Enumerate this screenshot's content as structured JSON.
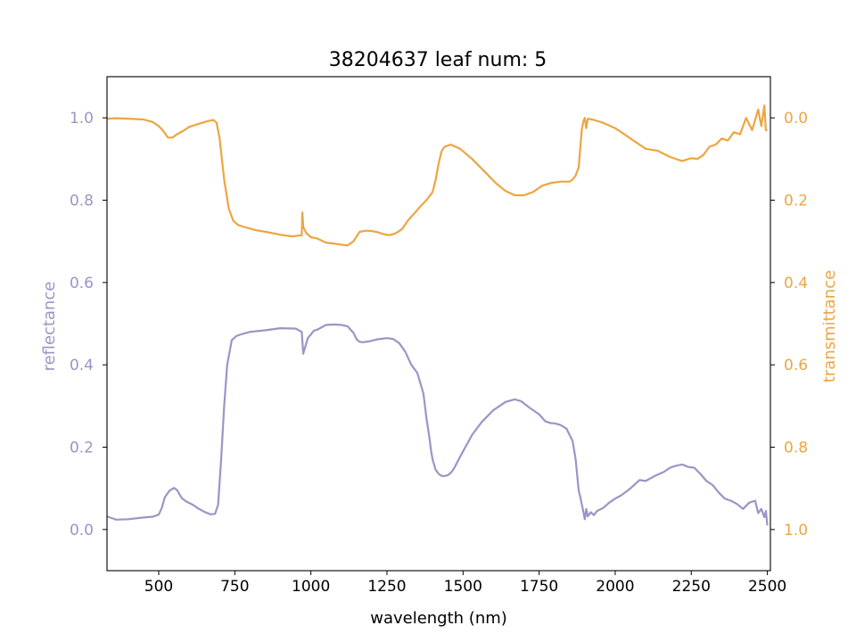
{
  "chart_data": {
    "type": "line",
    "title": "38204637 leaf num: 5",
    "xlabel": "wavelength (nm)",
    "xlim": [
      330,
      2510
    ],
    "x_ticks": [
      500,
      750,
      1000,
      1250,
      1500,
      1750,
      2000,
      2250,
      2500
    ],
    "colors": {
      "reflectance": "#9a95c6",
      "transmittance": "#eda542"
    },
    "left_axis": {
      "label": "reflectance",
      "ylim": [
        -0.1,
        1.1
      ],
      "ticks": [
        0.0,
        0.2,
        0.4,
        0.6,
        0.8,
        1.0
      ],
      "tick_labels": [
        "0.0",
        "0.2",
        "0.4",
        "0.6",
        "0.8",
        "1.0"
      ]
    },
    "right_axis": {
      "label": "transmittance",
      "ylim": [
        1.1,
        -0.1
      ],
      "inverted": true,
      "ticks": [
        0.0,
        0.2,
        0.4,
        0.6,
        0.8,
        1.0
      ],
      "tick_labels": [
        "0.0",
        "0.2",
        "0.4",
        "0.6",
        "0.8",
        "1.0"
      ]
    },
    "series": [
      {
        "axis": "left",
        "x": [
          330,
          360,
          400,
          450,
          480,
          500,
          510,
          520,
          535,
          550,
          560,
          575,
          590,
          610,
          630,
          650,
          670,
          685,
          695,
          705,
          715,
          725,
          740,
          755,
          770,
          800,
          850,
          900,
          950,
          970,
          975,
          980,
          990,
          1000,
          1010,
          1020,
          1050,
          1080,
          1100,
          1120,
          1140,
          1150,
          1160,
          1170,
          1190,
          1220,
          1250,
          1270,
          1290,
          1310,
          1330,
          1350,
          1370,
          1380,
          1390,
          1395,
          1400,
          1410,
          1420,
          1430,
          1440,
          1450,
          1460,
          1470,
          1500,
          1530,
          1560,
          1600,
          1640,
          1670,
          1690,
          1720,
          1750,
          1770,
          1790,
          1800,
          1820,
          1840,
          1860,
          1870,
          1880,
          1885,
          1890,
          1895,
          1900,
          1905,
          1910,
          1920,
          1930,
          1940,
          1960,
          1980,
          2000,
          2020,
          2050,
          2080,
          2100,
          2130,
          2160,
          2180,
          2200,
          2220,
          2240,
          2260,
          2280,
          2300,
          2320,
          2340,
          2360,
          2380,
          2400,
          2420,
          2440,
          2460,
          2470,
          2480,
          2490,
          2495,
          2500
        ],
        "y": [
          0.032,
          0.024,
          0.025,
          0.029,
          0.031,
          0.036,
          0.052,
          0.078,
          0.094,
          0.101,
          0.096,
          0.077,
          0.068,
          0.061,
          0.051,
          0.043,
          0.037,
          0.038,
          0.06,
          0.17,
          0.3,
          0.4,
          0.46,
          0.47,
          0.474,
          0.48,
          0.484,
          0.489,
          0.488,
          0.48,
          0.427,
          0.44,
          0.465,
          0.474,
          0.483,
          0.485,
          0.497,
          0.498,
          0.497,
          0.494,
          0.478,
          0.462,
          0.456,
          0.455,
          0.457,
          0.462,
          0.465,
          0.463,
          0.453,
          0.432,
          0.4,
          0.38,
          0.33,
          0.27,
          0.22,
          0.19,
          0.17,
          0.145,
          0.135,
          0.13,
          0.13,
          0.132,
          0.138,
          0.148,
          0.19,
          0.23,
          0.26,
          0.29,
          0.31,
          0.316,
          0.312,
          0.295,
          0.28,
          0.263,
          0.258,
          0.258,
          0.254,
          0.245,
          0.215,
          0.17,
          0.095,
          0.08,
          0.062,
          0.045,
          0.025,
          0.05,
          0.032,
          0.042,
          0.035,
          0.045,
          0.052,
          0.065,
          0.075,
          0.083,
          0.1,
          0.12,
          0.118,
          0.13,
          0.14,
          0.15,
          0.155,
          0.158,
          0.152,
          0.15,
          0.135,
          0.118,
          0.108,
          0.09,
          0.075,
          0.07,
          0.062,
          0.05,
          0.065,
          0.07,
          0.04,
          0.05,
          0.03,
          0.045,
          0.01
        ]
      },
      {
        "axis": "right",
        "x": [
          330,
          360,
          400,
          450,
          480,
          500,
          515,
          530,
          545,
          560,
          580,
          600,
          630,
          660,
          680,
          690,
          700,
          715,
          730,
          745,
          760,
          780,
          820,
          860,
          900,
          940,
          970,
          972,
          975,
          985,
          1000,
          1020,
          1050,
          1080,
          1100,
          1120,
          1140,
          1160,
          1180,
          1200,
          1220,
          1240,
          1260,
          1280,
          1300,
          1320,
          1340,
          1360,
          1380,
          1400,
          1410,
          1420,
          1430,
          1440,
          1460,
          1490,
          1530,
          1570,
          1610,
          1640,
          1670,
          1700,
          1730,
          1760,
          1790,
          1820,
          1850,
          1860,
          1870,
          1880,
          1890,
          1895,
          1900,
          1905,
          1910,
          1930,
          1960,
          2000,
          2030,
          2060,
          2100,
          2140,
          2180,
          2220,
          2250,
          2270,
          2290,
          2310,
          2330,
          2350,
          2370,
          2390,
          2410,
          2430,
          2450,
          2470,
          2480,
          2490,
          2495,
          2500
        ],
        "y": [
          0.002,
          0.001,
          0.002,
          0.004,
          0.01,
          0.02,
          0.032,
          0.048,
          0.048,
          0.04,
          0.032,
          0.022,
          0.015,
          0.008,
          0.005,
          0.012,
          0.05,
          0.15,
          0.22,
          0.25,
          0.26,
          0.265,
          0.273,
          0.278,
          0.284,
          0.288,
          0.285,
          0.23,
          0.265,
          0.28,
          0.29,
          0.293,
          0.303,
          0.306,
          0.308,
          0.31,
          0.3,
          0.277,
          0.274,
          0.275,
          0.278,
          0.283,
          0.285,
          0.28,
          0.27,
          0.248,
          0.232,
          0.215,
          0.2,
          0.18,
          0.15,
          0.11,
          0.08,
          0.07,
          0.065,
          0.075,
          0.1,
          0.13,
          0.16,
          0.178,
          0.188,
          0.188,
          0.18,
          0.165,
          0.158,
          0.155,
          0.155,
          0.15,
          0.14,
          0.12,
          0.03,
          0.01,
          0.0,
          0.025,
          0.002,
          0.005,
          0.012,
          0.025,
          0.04,
          0.055,
          0.075,
          0.08,
          0.095,
          0.105,
          0.098,
          0.1,
          0.09,
          0.07,
          0.065,
          0.05,
          0.055,
          0.035,
          0.04,
          0.0,
          0.03,
          -0.02,
          0.02,
          -0.03,
          0.03,
          0.03
        ]
      }
    ]
  }
}
